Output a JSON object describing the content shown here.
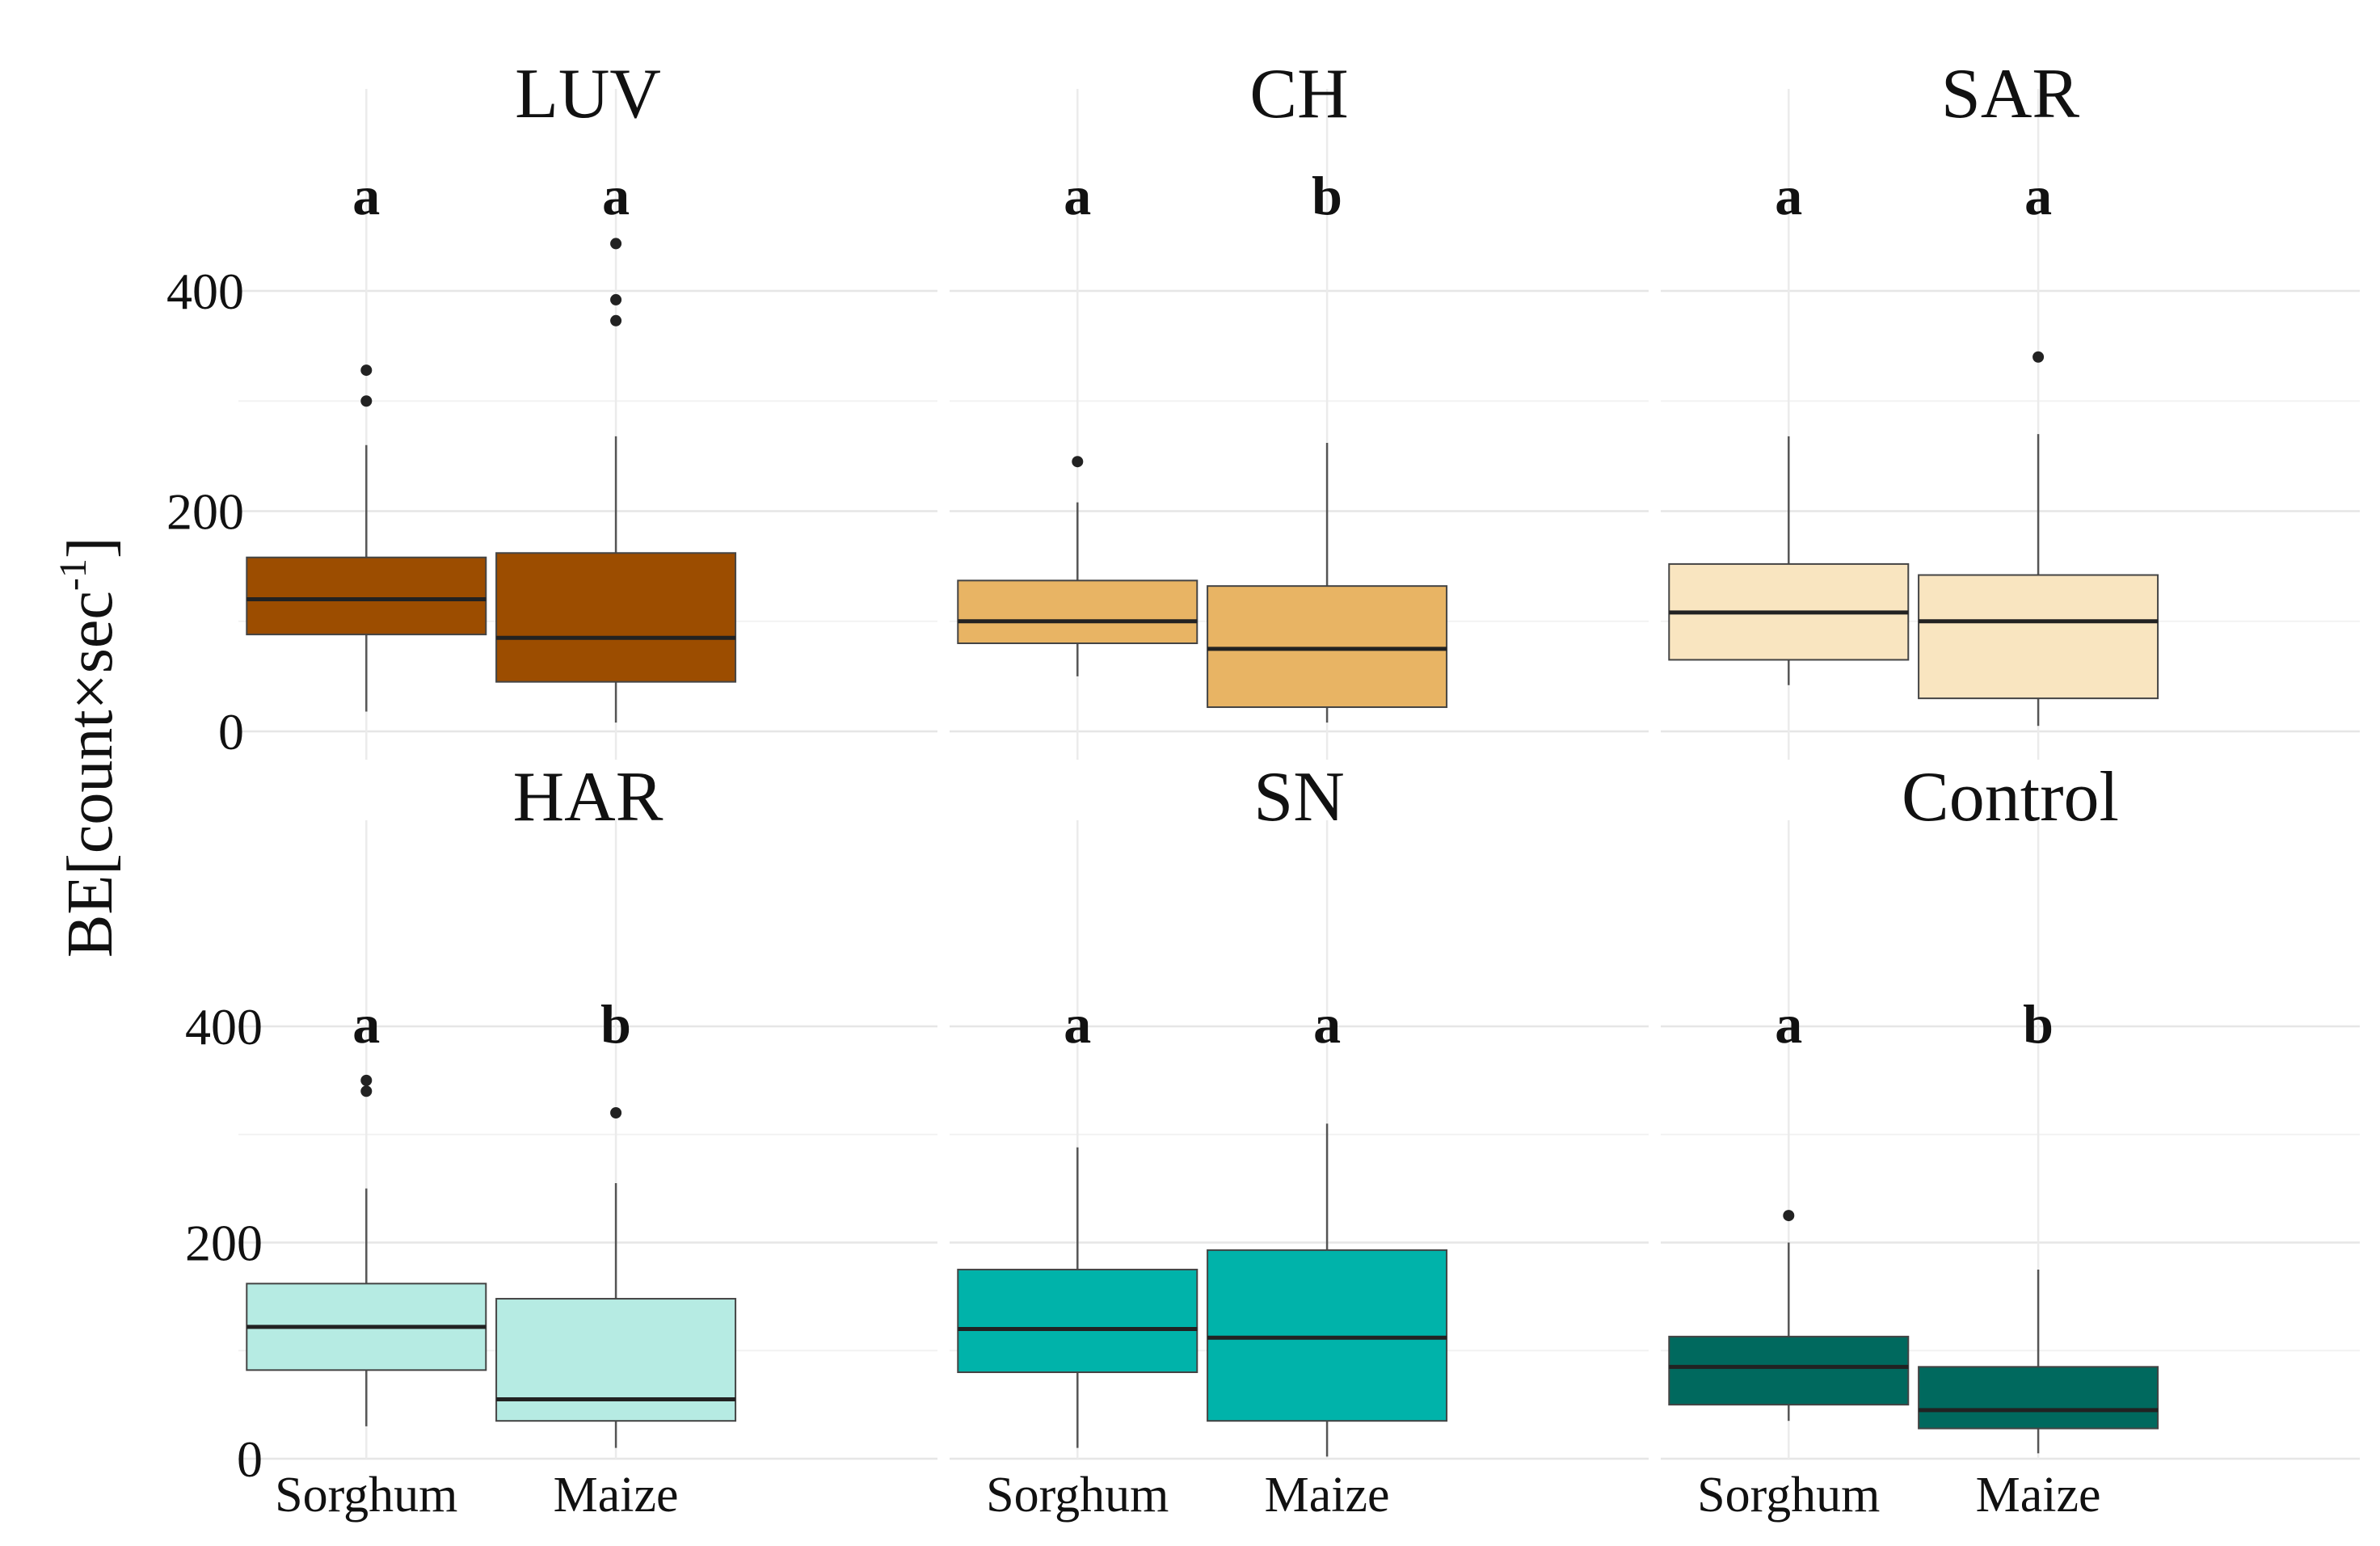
{
  "chart_data": {
    "type": "boxplot",
    "ylabel_text": "BE[count×sec",
    "ylabel_sup": "-1",
    "ylabel_close": "]",
    "yticks": [
      0,
      200,
      400
    ],
    "ylim": [
      -25,
      500
    ],
    "grid": true,
    "categories": [
      "Sorghum",
      "Maize"
    ],
    "colors": {
      "LUV": "#9c4d00",
      "CH": "#e8b464",
      "SAR": "#f9e5c0",
      "HAR": "#b6ebe3",
      "SN": "#00b3aa",
      "Control": "#00695e"
    },
    "panels": [
      {
        "title": "LUV",
        "boxes": [
          {
            "category": "Sorghum",
            "letter": "a",
            "q1": 88,
            "median": 120,
            "q3": 158,
            "whisker_low": 18,
            "whisker_high": 260,
            "outliers": [
              300,
              328
            ]
          },
          {
            "category": "Maize",
            "letter": "a",
            "q1": 45,
            "median": 85,
            "q3": 162,
            "whisker_low": 8,
            "whisker_high": 268,
            "outliers": [
              373,
              392,
              443
            ]
          }
        ]
      },
      {
        "title": "CH",
        "boxes": [
          {
            "category": "Sorghum",
            "letter": "a",
            "q1": 80,
            "median": 100,
            "q3": 137,
            "whisker_low": 50,
            "whisker_high": 208,
            "outliers": [
              245
            ]
          },
          {
            "category": "Maize",
            "letter": "b",
            "q1": 22,
            "median": 75,
            "q3": 132,
            "whisker_low": 8,
            "whisker_high": 262,
            "outliers": []
          }
        ]
      },
      {
        "title": "SAR",
        "boxes": [
          {
            "category": "Sorghum",
            "letter": "a",
            "q1": 65,
            "median": 108,
            "q3": 152,
            "whisker_low": 42,
            "whisker_high": 268,
            "outliers": []
          },
          {
            "category": "Maize",
            "letter": "a",
            "q1": 30,
            "median": 100,
            "q3": 142,
            "whisker_low": 5,
            "whisker_high": 270,
            "outliers": [
              340
            ]
          }
        ]
      },
      {
        "title": "HAR",
        "boxes": [
          {
            "category": "Sorghum",
            "letter": "a",
            "q1": 82,
            "median": 122,
            "q3": 162,
            "whisker_low": 30,
            "whisker_high": 250,
            "outliers": [
              340,
              350
            ]
          },
          {
            "category": "Maize",
            "letter": "b",
            "q1": 35,
            "median": 55,
            "q3": 148,
            "whisker_low": 10,
            "whisker_high": 255,
            "outliers": [
              320
            ]
          }
        ]
      },
      {
        "title": "SN",
        "boxes": [
          {
            "category": "Sorghum",
            "letter": "a",
            "q1": 80,
            "median": 120,
            "q3": 175,
            "whisker_low": 10,
            "whisker_high": 288,
            "outliers": []
          },
          {
            "category": "Maize",
            "letter": "a",
            "q1": 35,
            "median": 112,
            "q3": 193,
            "whisker_low": 2,
            "whisker_high": 310,
            "outliers": []
          }
        ]
      },
      {
        "title": "Control",
        "boxes": [
          {
            "category": "Sorghum",
            "letter": "a",
            "q1": 50,
            "median": 85,
            "q3": 113,
            "whisker_low": 35,
            "whisker_high": 200,
            "outliers": [
              225
            ]
          },
          {
            "category": "Maize",
            "letter": "b",
            "q1": 28,
            "median": 45,
            "q3": 85,
            "whisker_low": 5,
            "whisker_high": 175,
            "outliers": []
          }
        ]
      }
    ]
  }
}
